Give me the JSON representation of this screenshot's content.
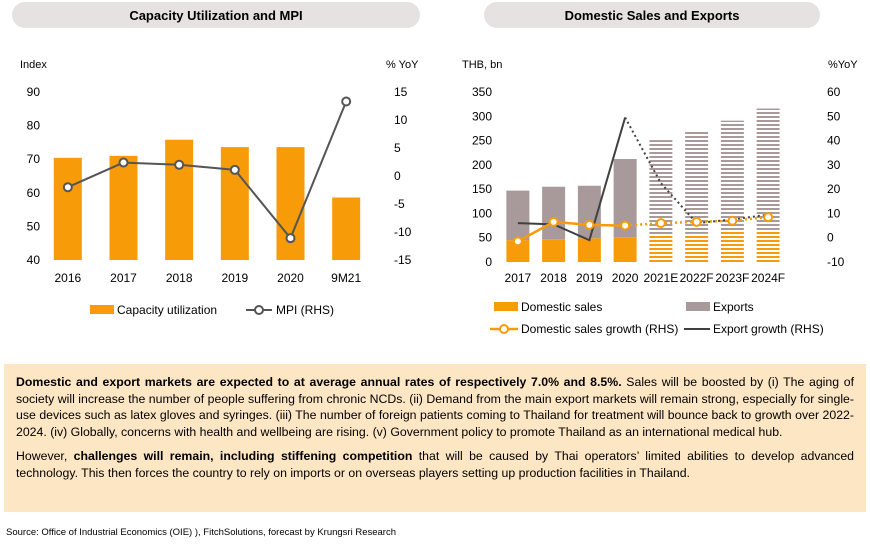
{
  "panels": {
    "left_title": "Capacity Utilization and MPI",
    "right_title": "Domestic Sales and Exports"
  },
  "colors": {
    "orange": "#f79b09",
    "export_gray": "#a89a9b",
    "hatch_bg": "#ffffff",
    "line_dark": "#555555",
    "dark_line": "#404040",
    "text_box_bg": "#fde6c4"
  },
  "chart_data": [
    {
      "type": "bar",
      "title": "Capacity Utilization and MPI",
      "categories": [
        "2016",
        "2017",
        "2018",
        "2019",
        "2020",
        "9M21"
      ],
      "ylabel": "Index",
      "y2label": "% YoY",
      "ylim": [
        40,
        90
      ],
      "yticks": [
        "40",
        "50",
        "60",
        "70",
        "80",
        "90"
      ],
      "y2lim": [
        -15,
        15
      ],
      "y2ticks": [
        "-15",
        "-10",
        "-5",
        "0",
        "5",
        "10",
        "15"
      ],
      "grid": false,
      "legend_position": "bottom",
      "series": [
        {
          "name": "Capacity utilization",
          "kind": "bar",
          "axis": "left",
          "values": [
            70.4,
            71.0,
            75.8,
            73.6,
            73.6,
            58.6
          ]
        },
        {
          "name": "MPI (RHS)",
          "kind": "line",
          "axis": "right",
          "values": [
            -2.0,
            2.4,
            2.0,
            1.1,
            -11.1,
            13.3
          ]
        }
      ]
    },
    {
      "type": "bar",
      "title": "Domestic Sales and Exports",
      "categories": [
        "2017",
        "2018",
        "2019",
        "2020",
        "2021E",
        "2022F",
        "2023F",
        "2024F"
      ],
      "ylabel": "THB, bn",
      "y2label": "%YoY",
      "ylim": [
        0,
        350
      ],
      "yticks": [
        "0",
        "50",
        "100",
        "150",
        "200",
        "250",
        "300",
        "350"
      ],
      "y2lim": [
        -10,
        60
      ],
      "y2ticks": [
        "-10",
        "0",
        "10",
        "20",
        "30",
        "40",
        "50",
        "60"
      ],
      "grid": false,
      "legend_position": "bottom",
      "forecast_start_index": 4,
      "series": [
        {
          "name": "Domestic sales",
          "kind": "stacked-bar",
          "axis": "left",
          "values": [
            45,
            47,
            49,
            51,
            54,
            58,
            62,
            66
          ]
        },
        {
          "name": "Exports",
          "kind": "stacked-bar",
          "axis": "left",
          "values": [
            102,
            108,
            108,
            161,
            197,
            212,
            229,
            250
          ]
        },
        {
          "name": "Domestic sales growth (RHS)",
          "kind": "line",
          "axis": "right",
          "values": [
            -1.5,
            6.5,
            5.3,
            5.0,
            6.0,
            6.5,
            7.0,
            8.5
          ]
        },
        {
          "name": "Export growth (RHS)",
          "kind": "line",
          "axis": "right",
          "values": [
            6.0,
            5.5,
            -1.0,
            49.5,
            22.5,
            6.0,
            7.5,
            9.5
          ]
        }
      ]
    }
  ],
  "text": {
    "p1_bold": "Domestic and export markets are expected to at average annual rates of respectively 7.0% and 8.5%.",
    "p1_rest": " Sales will be boosted by (i) The aging of society will increase the number of people suffering from chronic NCDs. (ii) Demand from the main export markets will remain strong, especially for single-use devices such as latex gloves and syringes. (iii) The number of foreign patients coming to Thailand for treatment will bounce back to growth over 2022-2024. (iv) Globally, concerns with health and wellbeing are rising. (v) Government policy to promote Thailand as an international medical hub.",
    "p2_start": "However, ",
    "p2_bold": "challenges will remain, including stiffening competition",
    "p2_rest": " that will be caused by Thai operators’ limited abilities to develop advanced technology. This then forces the country to rely on imports or on overseas players setting up production facilities in Thailand."
  },
  "source": "Source: Office of Industrial Economics (OIE) ), FitchSolutions, forecast by Krungsri Research"
}
